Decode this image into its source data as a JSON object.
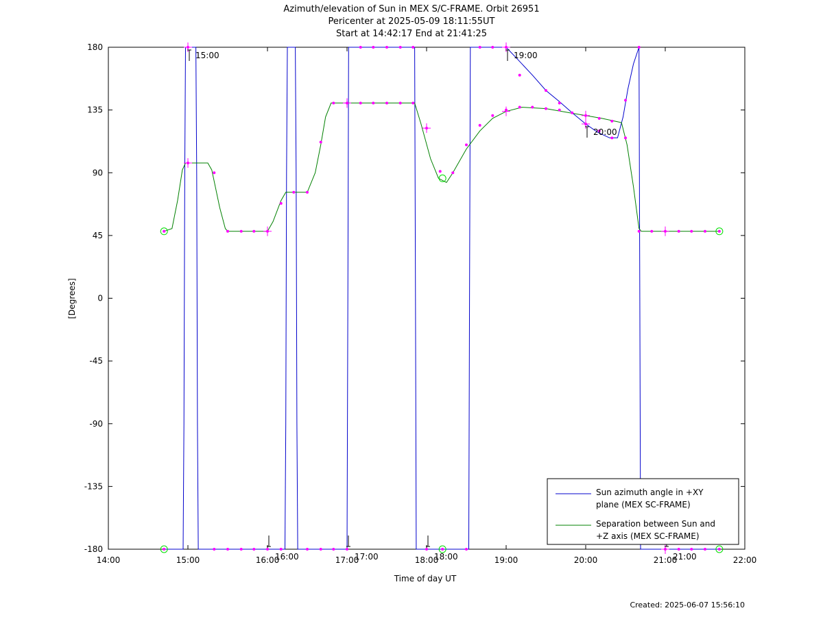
{
  "title_lines": [
    "Azimuth/elevation of Sun in MEX S/C-FRAME.  Orbit 26951",
    "Pericenter at 2025-05-09 18:11:55UT",
    "Start at 14:42:17 End at 21:41:25"
  ],
  "created": "Created: 2025-06-07 15:56:10",
  "chart_data": {
    "type": "line",
    "xlabel": "Time of day UT",
    "ylabel": "[Degrees]",
    "xlim": [
      14.0,
      22.0
    ],
    "ylim": [
      -180,
      180
    ],
    "xticks": [
      14,
      15,
      16,
      17,
      18,
      19,
      20,
      21,
      22
    ],
    "xtick_labels": [
      "14:00",
      "15:00",
      "16:00",
      "17:00",
      "18:00",
      "19:00",
      "20:00",
      "21:00",
      "22:00"
    ],
    "yticks": [
      180,
      135,
      90,
      45,
      0,
      -45,
      -90,
      -135,
      -180
    ],
    "ytick_labels": [
      "180",
      "135",
      "90",
      "45",
      "0",
      "-45",
      "-90",
      "-135",
      "-180"
    ],
    "grid": false,
    "legend_position": "bottom-right",
    "series": [
      {
        "name": "Sun azimuth angle in +XY plane (MEX SC-FRAME)",
        "legend_lines": [
          "Sun azimuth angle in +XY",
          "plane (MEX SC-FRAME)"
        ],
        "color": "#0000cc",
        "points": [
          [
            14.7,
            -180
          ],
          [
            14.94,
            -180
          ],
          [
            14.95,
            -90
          ],
          [
            14.96,
            90
          ],
          [
            14.97,
            180
          ],
          [
            15.1,
            180
          ],
          [
            15.11,
            90
          ],
          [
            15.12,
            -90
          ],
          [
            15.13,
            -180
          ],
          [
            16.22,
            -180
          ],
          [
            16.23,
            -90
          ],
          [
            16.24,
            90
          ],
          [
            16.25,
            180
          ],
          [
            16.35,
            180
          ],
          [
            16.36,
            90
          ],
          [
            16.37,
            -90
          ],
          [
            16.38,
            -180
          ],
          [
            17.0,
            -180
          ],
          [
            17.01,
            0
          ],
          [
            17.02,
            180
          ],
          [
            17.85,
            180
          ],
          [
            17.86,
            0
          ],
          [
            17.87,
            -180
          ],
          [
            18.53,
            -180
          ],
          [
            18.54,
            0
          ],
          [
            18.55,
            180
          ],
          [
            19.0,
            180
          ],
          [
            19.15,
            171
          ],
          [
            19.33,
            160
          ],
          [
            19.5,
            149
          ],
          [
            19.67,
            141
          ],
          [
            19.83,
            133
          ],
          [
            20.0,
            125
          ],
          [
            20.15,
            119
          ],
          [
            20.3,
            115
          ],
          [
            20.4,
            115
          ],
          [
            20.47,
            130
          ],
          [
            20.53,
            150
          ],
          [
            20.6,
            168
          ],
          [
            20.67,
            180
          ],
          [
            20.68,
            0
          ],
          [
            20.69,
            -180
          ],
          [
            21.68,
            -180
          ]
        ],
        "markers": [
          [
            14.7,
            -180
          ],
          [
            15.0,
            180
          ],
          [
            15.33,
            -180
          ],
          [
            15.5,
            -180
          ],
          [
            15.67,
            -180
          ],
          [
            15.83,
            -180
          ],
          [
            16.0,
            -180
          ],
          [
            16.17,
            -180
          ],
          [
            16.5,
            -180
          ],
          [
            16.67,
            -180
          ],
          [
            16.83,
            -180
          ],
          [
            17.0,
            -180
          ],
          [
            17.17,
            180
          ],
          [
            17.33,
            180
          ],
          [
            17.5,
            180
          ],
          [
            17.67,
            180
          ],
          [
            17.83,
            180
          ],
          [
            18.0,
            -180
          ],
          [
            18.2,
            -180
          ],
          [
            18.5,
            -180
          ],
          [
            18.67,
            180
          ],
          [
            18.83,
            180
          ],
          [
            19.0,
            180
          ],
          [
            19.17,
            160
          ],
          [
            19.5,
            149
          ],
          [
            19.67,
            140
          ],
          [
            20.0,
            125
          ],
          [
            20.17,
            120
          ],
          [
            20.33,
            115
          ],
          [
            20.5,
            142
          ],
          [
            20.67,
            180
          ],
          [
            21.0,
            -180
          ],
          [
            21.17,
            -180
          ],
          [
            21.33,
            -180
          ],
          [
            21.5,
            -180
          ],
          [
            21.68,
            -180
          ]
        ]
      },
      {
        "name": "Separation between Sun and +Z axis (MEX SC-FRAME)",
        "legend_lines": [
          "Separation between Sun and",
          "+Z axis (MEX SC-FRAME)"
        ],
        "color": "#008000",
        "points": [
          [
            14.7,
            48
          ],
          [
            14.8,
            50
          ],
          [
            14.87,
            70
          ],
          [
            14.93,
            92
          ],
          [
            14.97,
            97
          ],
          [
            15.25,
            97
          ],
          [
            15.3,
            92
          ],
          [
            15.4,
            65
          ],
          [
            15.47,
            50
          ],
          [
            15.5,
            48
          ],
          [
            16.0,
            48
          ],
          [
            16.07,
            55
          ],
          [
            16.17,
            70
          ],
          [
            16.23,
            76
          ],
          [
            16.5,
            76
          ],
          [
            16.6,
            90
          ],
          [
            16.67,
            110
          ],
          [
            16.73,
            130
          ],
          [
            16.8,
            140
          ],
          [
            17.85,
            140
          ],
          [
            17.93,
            125
          ],
          [
            18.05,
            100
          ],
          [
            18.15,
            86
          ],
          [
            18.25,
            83
          ],
          [
            18.33,
            90
          ],
          [
            18.5,
            107
          ],
          [
            18.67,
            120
          ],
          [
            18.83,
            129
          ],
          [
            19.0,
            134
          ],
          [
            19.2,
            137
          ],
          [
            19.5,
            136
          ],
          [
            19.8,
            133
          ],
          [
            20.0,
            131
          ],
          [
            20.2,
            129
          ],
          [
            20.45,
            126
          ],
          [
            20.52,
            110
          ],
          [
            20.6,
            80
          ],
          [
            20.67,
            50
          ],
          [
            20.7,
            48
          ],
          [
            21.68,
            48
          ]
        ],
        "markers": [
          [
            14.7,
            48
          ],
          [
            15.0,
            97
          ],
          [
            15.33,
            90
          ],
          [
            15.5,
            48
          ],
          [
            15.67,
            48
          ],
          [
            15.83,
            48
          ],
          [
            16.0,
            48
          ],
          [
            16.17,
            68
          ],
          [
            16.33,
            76
          ],
          [
            16.5,
            76
          ],
          [
            16.67,
            112
          ],
          [
            16.83,
            140
          ],
          [
            17.0,
            140
          ],
          [
            17.17,
            140
          ],
          [
            17.33,
            140
          ],
          [
            17.5,
            140
          ],
          [
            17.67,
            140
          ],
          [
            17.83,
            140
          ],
          [
            18.0,
            122
          ],
          [
            18.17,
            91
          ],
          [
            18.33,
            90
          ],
          [
            18.5,
            110
          ],
          [
            18.67,
            124
          ],
          [
            18.83,
            131
          ],
          [
            19.0,
            135
          ],
          [
            19.17,
            137
          ],
          [
            19.33,
            137
          ],
          [
            19.5,
            136
          ],
          [
            19.67,
            135
          ],
          [
            19.83,
            133
          ],
          [
            20.0,
            131
          ],
          [
            20.17,
            129
          ],
          [
            20.33,
            127
          ],
          [
            20.5,
            115
          ],
          [
            20.67,
            48
          ],
          [
            20.83,
            48
          ],
          [
            21.0,
            48
          ],
          [
            21.17,
            48
          ],
          [
            21.33,
            48
          ],
          [
            21.5,
            48
          ],
          [
            21.68,
            48
          ]
        ]
      }
    ],
    "annotations": [
      {
        "label": "15:00",
        "x": 15.0,
        "y": 180
      },
      {
        "label": "16:00",
        "x": 16.0,
        "y": -180
      },
      {
        "label": "17:00",
        "x": 17.0,
        "y": -180
      },
      {
        "label": "18:00",
        "x": 18.0,
        "y": -180
      },
      {
        "label": "19:00",
        "x": 19.0,
        "y": 180
      },
      {
        "label": "20:00",
        "x": 20.0,
        "y": 125
      },
      {
        "label": "21:00",
        "x": 21.0,
        "y": -180
      }
    ],
    "endpoint_markers": [
      [
        14.7,
        48
      ],
      [
        14.7,
        -180
      ],
      [
        18.2,
        86
      ],
      [
        18.2,
        -180
      ],
      [
        21.68,
        48
      ],
      [
        21.68,
        -180
      ]
    ],
    "highlight_crosses": [
      [
        15.0,
        97
      ],
      [
        15.0,
        180
      ],
      [
        16.0,
        48
      ],
      [
        17.0,
        140
      ],
      [
        18.0,
        122
      ],
      [
        19.0,
        134
      ],
      [
        19.0,
        180
      ],
      [
        20.0,
        131
      ],
      [
        20.0,
        125
      ],
      [
        21.0,
        48
      ],
      [
        21.0,
        -180
      ]
    ]
  }
}
